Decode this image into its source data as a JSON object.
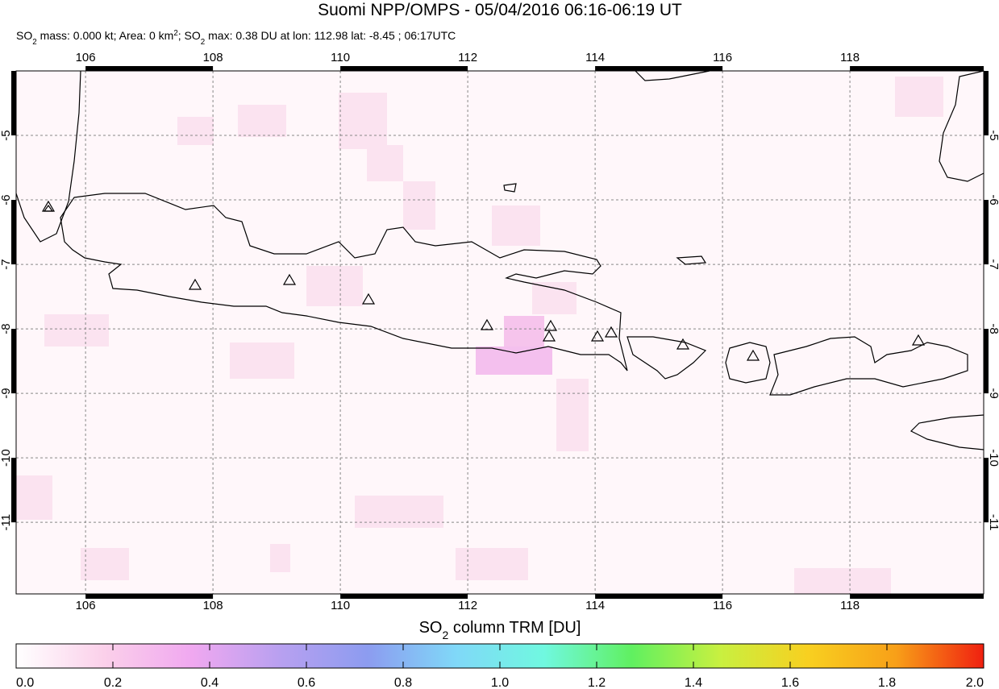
{
  "map": {
    "title": "Suomi NPP/OMPS - 05/04/2016 06:16-06:19 UT",
    "subtitle_parts": [
      {
        "text": "SO",
        "sub": false
      },
      {
        "text": "2",
        "sub": true
      },
      {
        "text": " mass: 0.000 kt; Area: 0 km",
        "sub": false
      },
      {
        "text": "2",
        "sub": "sup"
      },
      {
        "text": "; SO",
        "sub": false
      },
      {
        "text": "2",
        "sub": true
      },
      {
        "text": " max: 0.38 DU at lon: 112.98 lat: -8.45 ; 06:17UTC",
        "sub": false
      }
    ],
    "xlim": [
      104.91,
      120.1
    ],
    "ylim": [
      -12.11,
      -4.0
    ],
    "xticks": [
      106,
      108,
      110,
      112,
      114,
      116,
      118
    ],
    "yticks": [
      -5,
      -6,
      -7,
      -8,
      -9,
      -10,
      -11
    ],
    "grid": true,
    "colorbar": {
      "label_parts": [
        {
          "text": "SO",
          "sub": false
        },
        {
          "text": "2",
          "sub": true
        },
        {
          "text": " column TRM [DU]",
          "sub": false
        }
      ],
      "lim": [
        0,
        2
      ],
      "ticks": [
        {
          "value": 0,
          "label": "0.0"
        },
        {
          "value": 0.2,
          "label": "0.2"
        },
        {
          "value": 0.4,
          "label": "0.4"
        },
        {
          "value": 0.6,
          "label": "0.6"
        },
        {
          "value": 0.8,
          "label": "0.8"
        },
        {
          "value": 1,
          "label": "1.0"
        },
        {
          "value": 1.2,
          "label": "1.2"
        },
        {
          "value": 1.4,
          "label": "1.4"
        },
        {
          "value": 1.6,
          "label": "1.6"
        },
        {
          "value": 1.8,
          "label": "1.8"
        },
        {
          "value": 2,
          "label": "2.0"
        }
      ],
      "colors": [
        "#ffffff",
        "#fbd0ea",
        "#f0a8f0",
        "#b8a0f0",
        "#8c9cf0",
        "#80d8f8",
        "#70f8e0",
        "#60f060",
        "#c8f040",
        "#f8d020",
        "#f8a018",
        "#f02010"
      ]
    }
  }
}
